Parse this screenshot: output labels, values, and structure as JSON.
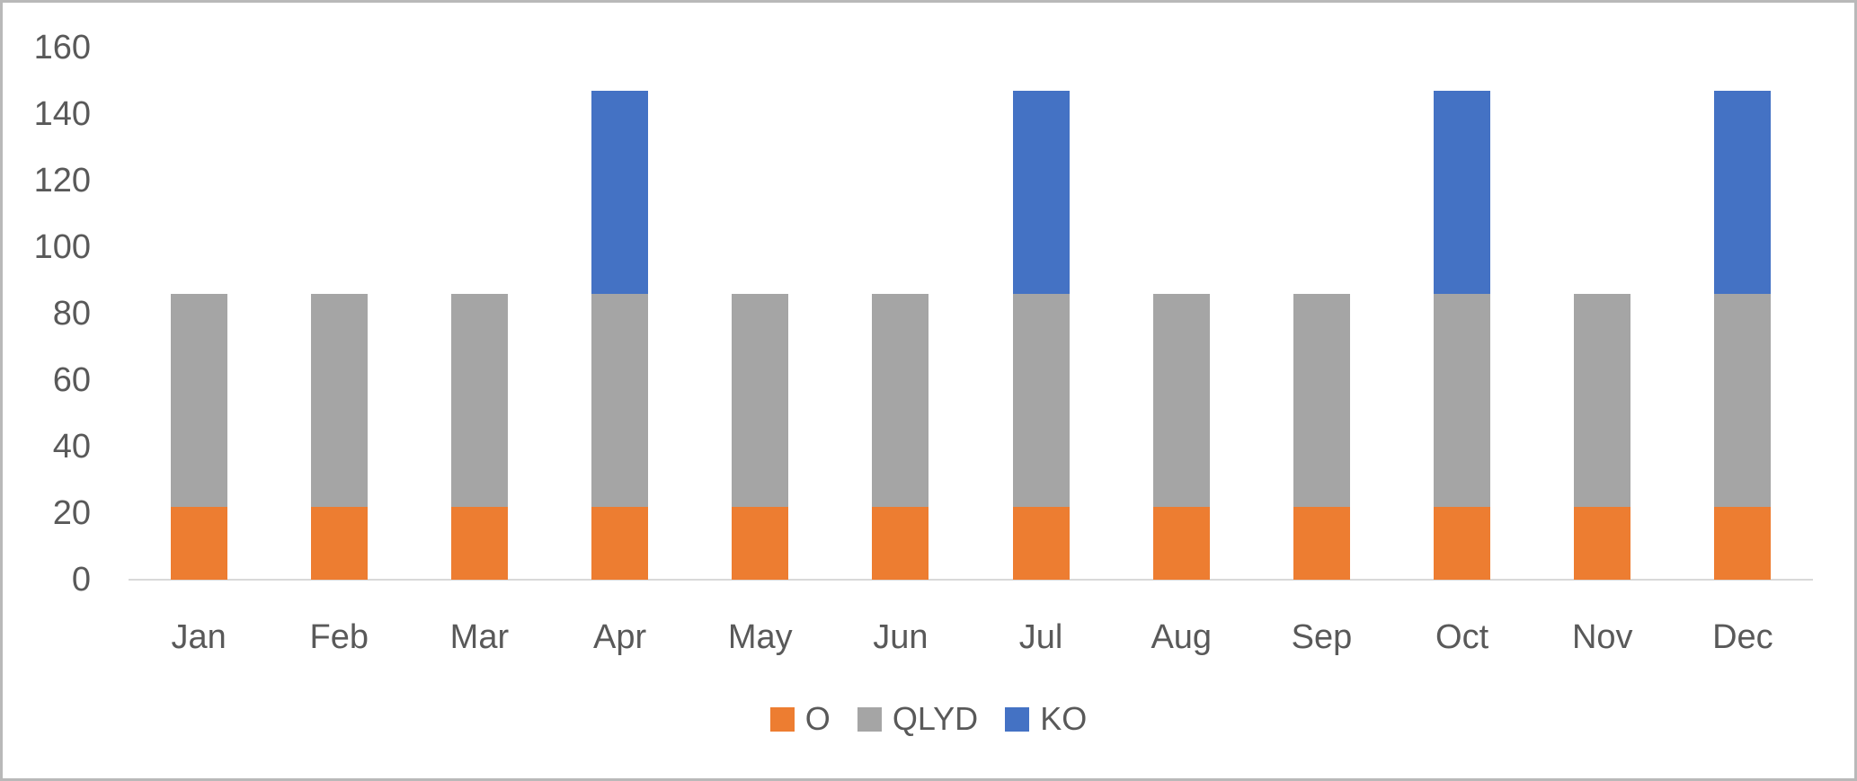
{
  "chart_data": {
    "type": "bar",
    "stacked": true,
    "categories": [
      "Jan",
      "Feb",
      "Mar",
      "Apr",
      "May",
      "Jun",
      "Jul",
      "Aug",
      "Sep",
      "Oct",
      "Nov",
      "Dec"
    ],
    "series": [
      {
        "name": "O",
        "color": "#ED7D31",
        "values": [
          22,
          22,
          22,
          22,
          22,
          22,
          22,
          22,
          22,
          22,
          22,
          22
        ]
      },
      {
        "name": "QLYD",
        "color": "#A5A5A5",
        "values": [
          64,
          64,
          64,
          64,
          64,
          64,
          64,
          64,
          64,
          64,
          64,
          64
        ]
      },
      {
        "name": "KO",
        "color": "#4472C4",
        "values": [
          0,
          0,
          0,
          61,
          0,
          0,
          61,
          0,
          0,
          61,
          0,
          61
        ]
      }
    ],
    "yticks": [
      0,
      20,
      40,
      60,
      80,
      100,
      120,
      140,
      160
    ],
    "ylim": [
      0,
      160
    ],
    "grid": false,
    "legend_position": "bottom"
  },
  "colors": {
    "axis_text": "#595959",
    "axis_line": "#D9D9D9",
    "frame_border": "#B9B9B9",
    "background": "#FFFFFF"
  }
}
